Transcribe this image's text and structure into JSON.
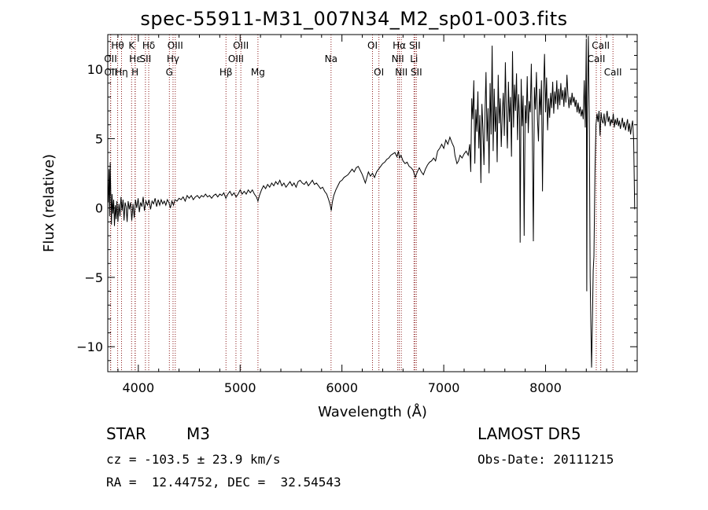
{
  "title": "spec-55911-M31_007N34_M2_sp01-003.fits",
  "info": {
    "object_type": "STAR",
    "subclass": "M3",
    "survey": "LAMOST DR5",
    "velocity": "cz = -103.5 ± 23.9 km/s",
    "obs_date": "Obs-Date: 20111215",
    "coords": "RA =  12.44752, DEC =  32.54543"
  },
  "chart_data": {
    "type": "line",
    "title": "spec-55911-M31_007N34_M2_sp01-003.fits",
    "xlabel": "Wavelength (Å)",
    "ylabel": "Flux (relative)",
    "xlim": [
      3700,
      8900
    ],
    "ylim": [
      -11.8,
      12.5
    ],
    "xticks": [
      4000,
      5000,
      6000,
      7000,
      8000
    ],
    "yticks": [
      -10,
      -5,
      0,
      5,
      10
    ],
    "line_color": "#000000",
    "marker_color": "#8b1a1a",
    "spectrum": [
      [
        3705,
        0.4
      ],
      [
        3712,
        2.8
      ],
      [
        3718,
        -0.6
      ],
      [
        3724,
        3.3
      ],
      [
        3730,
        0.9
      ],
      [
        3736,
        -1.2
      ],
      [
        3742,
        1.0
      ],
      [
        3750,
        -0.4
      ],
      [
        3758,
        0.6
      ],
      [
        3766,
        -1.3
      ],
      [
        3774,
        0.2
      ],
      [
        3782,
        -0.8
      ],
      [
        3790,
        0.5
      ],
      [
        3800,
        -1.0
      ],
      [
        3810,
        0.3
      ],
      [
        3820,
        -0.6
      ],
      [
        3830,
        0.8
      ],
      [
        3840,
        -0.2
      ],
      [
        3850,
        0.6
      ],
      [
        3860,
        -0.9
      ],
      [
        3870,
        0.4
      ],
      [
        3880,
        0.1
      ],
      [
        3890,
        -1.0
      ],
      [
        3900,
        0.5
      ],
      [
        3912,
        -0.1
      ],
      [
        3924,
        0.4
      ],
      [
        3936,
        -0.9
      ],
      [
        3948,
        0.3
      ],
      [
        3960,
        -0.7
      ],
      [
        3972,
        0.6
      ],
      [
        3985,
        0.0
      ],
      [
        3998,
        0.7
      ],
      [
        4010,
        -0.3
      ],
      [
        4022,
        0.4
      ],
      [
        4035,
        0.1
      ],
      [
        4048,
        0.8
      ],
      [
        4060,
        -0.2
      ],
      [
        4075,
        0.5
      ],
      [
        4090,
        0.2
      ],
      [
        4105,
        0.6
      ],
      [
        4120,
        -0.1
      ],
      [
        4135,
        0.5
      ],
      [
        4150,
        0.3
      ],
      [
        4165,
        0.7
      ],
      [
        4180,
        0.1
      ],
      [
        4195,
        0.6
      ],
      [
        4210,
        0.2
      ],
      [
        4225,
        0.6
      ],
      [
        4240,
        0.3
      ],
      [
        4255,
        0.5
      ],
      [
        4270,
        0.2
      ],
      [
        4285,
        0.6
      ],
      [
        4300,
        0.4
      ],
      [
        4315,
        0.0
      ],
      [
        4330,
        0.5
      ],
      [
        4345,
        0.2
      ],
      [
        4360,
        0.6
      ],
      [
        4380,
        0.5
      ],
      [
        4400,
        0.7
      ],
      [
        4420,
        0.6
      ],
      [
        4440,
        0.8
      ],
      [
        4460,
        0.5
      ],
      [
        4480,
        0.9
      ],
      [
        4500,
        0.7
      ],
      [
        4520,
        0.9
      ],
      [
        4540,
        0.6
      ],
      [
        4560,
        0.8
      ],
      [
        4580,
        0.9
      ],
      [
        4600,
        0.7
      ],
      [
        4620,
        0.9
      ],
      [
        4640,
        0.8
      ],
      [
        4660,
        1.0
      ],
      [
        4680,
        0.8
      ],
      [
        4700,
        0.9
      ],
      [
        4720,
        0.7
      ],
      [
        4740,
        0.9
      ],
      [
        4760,
        1.0
      ],
      [
        4780,
        0.8
      ],
      [
        4800,
        1.0
      ],
      [
        4820,
        0.9
      ],
      [
        4840,
        1.1
      ],
      [
        4860,
        0.7
      ],
      [
        4880,
        1.0
      ],
      [
        4900,
        1.2
      ],
      [
        4920,
        0.9
      ],
      [
        4940,
        1.1
      ],
      [
        4960,
        0.8
      ],
      [
        4980,
        1.0
      ],
      [
        5000,
        1.3
      ],
      [
        5020,
        1.0
      ],
      [
        5040,
        1.2
      ],
      [
        5060,
        1.0
      ],
      [
        5080,
        1.3
      ],
      [
        5100,
        1.1
      ],
      [
        5120,
        1.3
      ],
      [
        5140,
        1.0
      ],
      [
        5160,
        0.8
      ],
      [
        5175,
        0.5
      ],
      [
        5190,
        0.9
      ],
      [
        5210,
        1.3
      ],
      [
        5230,
        1.6
      ],
      [
        5250,
        1.4
      ],
      [
        5270,
        1.7
      ],
      [
        5290,
        1.5
      ],
      [
        5310,
        1.8
      ],
      [
        5330,
        1.6
      ],
      [
        5350,
        1.9
      ],
      [
        5370,
        1.7
      ],
      [
        5390,
        2.0
      ],
      [
        5410,
        1.6
      ],
      [
        5430,
        1.8
      ],
      [
        5450,
        1.5
      ],
      [
        5470,
        1.7
      ],
      [
        5490,
        1.9
      ],
      [
        5510,
        1.6
      ],
      [
        5530,
        1.8
      ],
      [
        5550,
        1.5
      ],
      [
        5570,
        1.9
      ],
      [
        5590,
        2.0
      ],
      [
        5610,
        1.8
      ],
      [
        5630,
        1.7
      ],
      [
        5650,
        1.9
      ],
      [
        5670,
        1.6
      ],
      [
        5690,
        1.8
      ],
      [
        5710,
        2.0
      ],
      [
        5730,
        1.7
      ],
      [
        5750,
        1.8
      ],
      [
        5770,
        1.6
      ],
      [
        5790,
        1.4
      ],
      [
        5810,
        1.5
      ],
      [
        5830,
        1.2
      ],
      [
        5850,
        1.0
      ],
      [
        5870,
        0.6
      ],
      [
        5885,
        0.2
      ],
      [
        5895,
        -0.2
      ],
      [
        5905,
        0.4
      ],
      [
        5920,
        0.9
      ],
      [
        5940,
        1.3
      ],
      [
        5960,
        1.6
      ],
      [
        5980,
        1.9
      ],
      [
        6000,
        2.0
      ],
      [
        6020,
        2.2
      ],
      [
        6040,
        2.3
      ],
      [
        6060,
        2.4
      ],
      [
        6080,
        2.6
      ],
      [
        6100,
        2.8
      ],
      [
        6120,
        2.6
      ],
      [
        6140,
        2.9
      ],
      [
        6160,
        3.0
      ],
      [
        6180,
        2.7
      ],
      [
        6200,
        2.4
      ],
      [
        6215,
        2.1
      ],
      [
        6230,
        1.8
      ],
      [
        6245,
        2.2
      ],
      [
        6260,
        2.6
      ],
      [
        6280,
        2.3
      ],
      [
        6300,
        2.5
      ],
      [
        6320,
        2.2
      ],
      [
        6340,
        2.6
      ],
      [
        6360,
        2.8
      ],
      [
        6380,
        3.0
      ],
      [
        6400,
        3.2
      ],
      [
        6420,
        3.3
      ],
      [
        6440,
        3.5
      ],
      [
        6460,
        3.6
      ],
      [
        6480,
        3.8
      ],
      [
        6500,
        3.9
      ],
      [
        6520,
        4.0
      ],
      [
        6540,
        3.7
      ],
      [
        6555,
        4.1
      ],
      [
        6565,
        3.6
      ],
      [
        6580,
        3.8
      ],
      [
        6600,
        3.4
      ],
      [
        6620,
        3.2
      ],
      [
        6640,
        3.3
      ],
      [
        6660,
        3.0
      ],
      [
        6680,
        2.9
      ],
      [
        6700,
        2.7
      ],
      [
        6720,
        2.2
      ],
      [
        6740,
        2.6
      ],
      [
        6760,
        2.9
      ],
      [
        6780,
        2.6
      ],
      [
        6800,
        2.4
      ],
      [
        6820,
        2.8
      ],
      [
        6840,
        3.1
      ],
      [
        6860,
        3.3
      ],
      [
        6880,
        3.4
      ],
      [
        6900,
        3.6
      ],
      [
        6920,
        3.4
      ],
      [
        6940,
        4.1
      ],
      [
        6960,
        4.3
      ],
      [
        6980,
        4.6
      ],
      [
        7000,
        4.3
      ],
      [
        7020,
        4.9
      ],
      [
        7040,
        4.6
      ],
      [
        7060,
        5.1
      ],
      [
        7080,
        4.7
      ],
      [
        7100,
        4.4
      ],
      [
        7110,
        3.8
      ],
      [
        7120,
        3.5
      ],
      [
        7130,
        3.2
      ],
      [
        7145,
        3.4
      ],
      [
        7160,
        3.8
      ],
      [
        7180,
        3.6
      ],
      [
        7200,
        3.9
      ],
      [
        7220,
        4.1
      ],
      [
        7240,
        3.8
      ],
      [
        7255,
        4.6
      ],
      [
        7265,
        2.6
      ],
      [
        7275,
        7.9
      ],
      [
        7285,
        6.4
      ],
      [
        7295,
        9.2
      ],
      [
        7305,
        3.2
      ],
      [
        7315,
        7.1
      ],
      [
        7325,
        5.5
      ],
      [
        7335,
        8.4
      ],
      [
        7345,
        4.3
      ],
      [
        7355,
        6.7
      ],
      [
        7365,
        1.8
      ],
      [
        7375,
        7.5
      ],
      [
        7385,
        5.7
      ],
      [
        7395,
        3.1
      ],
      [
        7405,
        6.8
      ],
      [
        7415,
        9.8
      ],
      [
        7425,
        4.8
      ],
      [
        7435,
        7.2
      ],
      [
        7445,
        2.5
      ],
      [
        7455,
        9.0
      ],
      [
        7465,
        5.3
      ],
      [
        7475,
        11.7
      ],
      [
        7485,
        4.1
      ],
      [
        7495,
        8.6
      ],
      [
        7505,
        5.5
      ],
      [
        7515,
        7.3
      ],
      [
        7525,
        3.3
      ],
      [
        7535,
        9.6
      ],
      [
        7545,
        6.1
      ],
      [
        7555,
        7.9
      ],
      [
        7565,
        4.4
      ],
      [
        7575,
        6.8
      ],
      [
        7585,
        8.3
      ],
      [
        7595,
        5.2
      ],
      [
        7605,
        10.5
      ],
      [
        7615,
        6.6
      ],
      [
        7625,
        4.3
      ],
      [
        7635,
        9.1
      ],
      [
        7645,
        6.2
      ],
      [
        7655,
        8.0
      ],
      [
        7665,
        3.7
      ],
      [
        7675,
        11.3
      ],
      [
        7685,
        5.8
      ],
      [
        7695,
        8.9
      ],
      [
        7705,
        7.0
      ],
      [
        7715,
        9.7
      ],
      [
        7725,
        4.9
      ],
      [
        7735,
        8.2
      ],
      [
        7745,
        6.4
      ],
      [
        7750,
        -2.5
      ],
      [
        7760,
        9.3
      ],
      [
        7770,
        5.9
      ],
      [
        7780,
        8.1
      ],
      [
        7790,
        -2.0
      ],
      [
        7800,
        7.4
      ],
      [
        7810,
        6.1
      ],
      [
        7820,
        9.5
      ],
      [
        7830,
        5.4
      ],
      [
        7840,
        7.7
      ],
      [
        7850,
        6.9
      ],
      [
        7860,
        10.4
      ],
      [
        7870,
        5.3
      ],
      [
        7880,
        -2.4
      ],
      [
        7890,
        8.7
      ],
      [
        7900,
        7.1
      ],
      [
        7910,
        9.8
      ],
      [
        7920,
        6.4
      ],
      [
        7930,
        4.8
      ],
      [
        7940,
        8.6
      ],
      [
        7950,
        6.7
      ],
      [
        7960,
        9.2
      ],
      [
        7970,
        1.2
      ],
      [
        7980,
        8.3
      ],
      [
        7990,
        11.1
      ],
      [
        8000,
        6.9
      ],
      [
        8010,
        9.4
      ],
      [
        8020,
        5.6
      ],
      [
        8030,
        7.9
      ],
      [
        8040,
        6.5
      ],
      [
        8050,
        8.3
      ],
      [
        8060,
        7.2
      ],
      [
        8070,
        9.1
      ],
      [
        8080,
        6.8
      ],
      [
        8090,
        8.4
      ],
      [
        8100,
        7.5
      ],
      [
        8110,
        9.2
      ],
      [
        8120,
        7.1
      ],
      [
        8130,
        8.6
      ],
      [
        8140,
        7.4
      ],
      [
        8150,
        9.0
      ],
      [
        8160,
        7.8
      ],
      [
        8170,
        8.5
      ],
      [
        8180,
        7.3
      ],
      [
        8190,
        8.7
      ],
      [
        8200,
        7.6
      ],
      [
        8210,
        9.6
      ],
      [
        8220,
        8.1
      ],
      [
        8230,
        7.2
      ],
      [
        8240,
        8.0
      ],
      [
        8250,
        7.4
      ],
      [
        8260,
        8.3
      ],
      [
        8270,
        7.6
      ],
      [
        8280,
        8.0
      ],
      [
        8290,
        7.3
      ],
      [
        8300,
        7.8
      ],
      [
        8310,
        6.9
      ],
      [
        8320,
        7.6
      ],
      [
        8330,
        6.8
      ],
      [
        8340,
        7.3
      ],
      [
        8350,
        6.6
      ],
      [
        8360,
        7.1
      ],
      [
        8370,
        6.4
      ],
      [
        8380,
        9.2
      ],
      [
        8390,
        5.8
      ],
      [
        8400,
        12.2
      ],
      [
        8405,
        -6.0
      ],
      [
        8410,
        6.9
      ],
      [
        8420,
        12.4
      ],
      [
        8430,
        5.5
      ],
      [
        8438,
        -5.0
      ],
      [
        8445,
        -8.5
      ],
      [
        8452,
        -11.5
      ],
      [
        8460,
        -8.0
      ],
      [
        8468,
        -4.5
      ],
      [
        8475,
        -3.5
      ],
      [
        8485,
        2.5
      ],
      [
        8495,
        6.0
      ],
      [
        8505,
        6.8
      ],
      [
        8515,
        6.2
      ],
      [
        8525,
        7.0
      ],
      [
        8535,
        5.2
      ],
      [
        8545,
        6.9
      ],
      [
        8555,
        6.3
      ],
      [
        8565,
        6.1
      ],
      [
        8575,
        6.8
      ],
      [
        8585,
        5.9
      ],
      [
        8595,
        6.5
      ],
      [
        8605,
        7.0
      ],
      [
        8615,
        6.2
      ],
      [
        8625,
        6.6
      ],
      [
        8635,
        5.9
      ],
      [
        8645,
        6.4
      ],
      [
        8655,
        6.1
      ],
      [
        8665,
        6.8
      ],
      [
        8675,
        5.8
      ],
      [
        8685,
        6.4
      ],
      [
        8695,
        6.0
      ],
      [
        8705,
        6.5
      ],
      [
        8715,
        5.9
      ],
      [
        8725,
        6.3
      ],
      [
        8735,
        5.7
      ],
      [
        8745,
        6.1
      ],
      [
        8755,
        6.5
      ],
      [
        8765,
        5.8
      ],
      [
        8775,
        6.2
      ],
      [
        8785,
        5.6
      ],
      [
        8795,
        6.0
      ],
      [
        8805,
        6.4
      ],
      [
        8815,
        5.5
      ],
      [
        8825,
        6.1
      ],
      [
        8835,
        5.3
      ],
      [
        8845,
        5.9
      ],
      [
        8855,
        6.3
      ],
      [
        8865,
        4.9
      ],
      [
        8875,
        -0.1
      ]
    ],
    "lines": [
      {
        "label": "Hθ",
        "wavelength": 3797,
        "row": 1
      },
      {
        "label": "OII",
        "wavelength": 3727,
        "row": 2
      },
      {
        "label": "OII",
        "wavelength": 3729,
        "row": 3
      },
      {
        "label": "Hη",
        "wavelength": 3835,
        "row": 3
      },
      {
        "label": "K",
        "wavelength": 3934,
        "row": 1
      },
      {
        "label": "Hε",
        "wavelength": 3970,
        "row": 2
      },
      {
        "label": "H",
        "wavelength": 3968,
        "row": 3
      },
      {
        "label": "Hδ",
        "wavelength": 4102,
        "row": 1
      },
      {
        "label": "SII",
        "wavelength": 4070,
        "row": 2
      },
      {
        "label": "OIII",
        "wavelength": 4363,
        "row": 1
      },
      {
        "label": "Hγ",
        "wavelength": 4341,
        "row": 2
      },
      {
        "label": "G",
        "wavelength": 4305,
        "row": 3
      },
      {
        "label": "Hβ",
        "wavelength": 4861,
        "row": 3
      },
      {
        "label": "OIII",
        "wavelength": 5007,
        "row": 1
      },
      {
        "label": "OIII",
        "wavelength": 4959,
        "row": 2
      },
      {
        "label": "Mg",
        "wavelength": 5175,
        "row": 3
      },
      {
        "label": "Na",
        "wavelength": 5893,
        "row": 2
      },
      {
        "label": "OI",
        "wavelength": 6300,
        "row": 1
      },
      {
        "label": "OI",
        "wavelength": 6363,
        "row": 3
      },
      {
        "label": "Hα",
        "wavelength": 6563,
        "row": 1
      },
      {
        "label": "NII",
        "wavelength": 6548,
        "row": 2
      },
      {
        "label": "NII",
        "wavelength": 6583,
        "row": 3
      },
      {
        "label": "SII",
        "wavelength": 6716,
        "row": 1
      },
      {
        "label": "Li",
        "wavelength": 6708,
        "row": 2
      },
      {
        "label": "SII",
        "wavelength": 6731,
        "row": 3
      },
      {
        "label": "CaII",
        "wavelength": 8542,
        "row": 1
      },
      {
        "label": "CaII",
        "wavelength": 8498,
        "row": 2
      },
      {
        "label": "CaII",
        "wavelength": 8662,
        "row": 3
      }
    ]
  }
}
